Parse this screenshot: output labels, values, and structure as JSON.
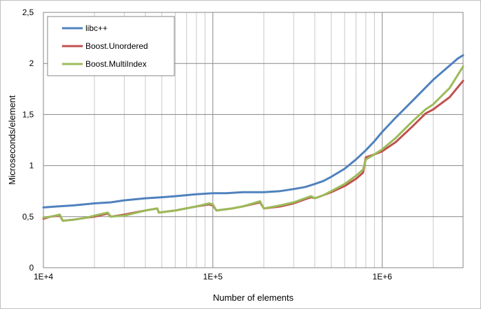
{
  "chart_data": {
    "type": "line",
    "title": "",
    "xlabel": "Number of elements",
    "ylabel": "Microseconds/element",
    "x_scale": "log",
    "xlim": [
      10000,
      3000000
    ],
    "ylim": [
      0,
      2.5
    ],
    "x_tick_labels": [
      "1E+4",
      "1E+5",
      "1E+6"
    ],
    "x_tick_values": [
      10000,
      100000,
      1000000
    ],
    "y_tick_labels": [
      "0",
      "0,5",
      "1",
      "1,5",
      "2",
      "2,5"
    ],
    "y_tick_values": [
      0,
      0.5,
      1,
      1.5,
      2,
      2.5
    ],
    "grid": true,
    "legend_position": "top-left",
    "series": [
      {
        "name": "libc++",
        "color": "#4f81bd",
        "points": [
          [
            10000,
            0.59
          ],
          [
            12000,
            0.6
          ],
          [
            15000,
            0.61
          ],
          [
            20000,
            0.63
          ],
          [
            25000,
            0.64
          ],
          [
            30000,
            0.66
          ],
          [
            40000,
            0.68
          ],
          [
            50000,
            0.69
          ],
          [
            60000,
            0.7
          ],
          [
            80000,
            0.72
          ],
          [
            100000,
            0.73
          ],
          [
            120000,
            0.73
          ],
          [
            150000,
            0.74
          ],
          [
            200000,
            0.74
          ],
          [
            250000,
            0.75
          ],
          [
            300000,
            0.77
          ],
          [
            350000,
            0.79
          ],
          [
            400000,
            0.82
          ],
          [
            450000,
            0.85
          ],
          [
            500000,
            0.89
          ],
          [
            600000,
            0.97
          ],
          [
            700000,
            1.06
          ],
          [
            800000,
            1.15
          ],
          [
            900000,
            1.24
          ],
          [
            1000000,
            1.33
          ],
          [
            1200000,
            1.47
          ],
          [
            1500000,
            1.63
          ],
          [
            2000000,
            1.84
          ],
          [
            2500000,
            1.98
          ],
          [
            2800000,
            2.05
          ],
          [
            3000000,
            2.08
          ]
        ]
      },
      {
        "name": "Boost.Unordered",
        "color": "#c0504d",
        "points": [
          [
            10000,
            0.48
          ],
          [
            11000,
            0.5
          ],
          [
            12500,
            0.51
          ],
          [
            13000,
            0.46
          ],
          [
            15000,
            0.47
          ],
          [
            18000,
            0.49
          ],
          [
            20000,
            0.5
          ],
          [
            24000,
            0.53
          ],
          [
            25000,
            0.5
          ],
          [
            30000,
            0.52
          ],
          [
            40000,
            0.56
          ],
          [
            47000,
            0.58
          ],
          [
            48000,
            0.54
          ],
          [
            60000,
            0.56
          ],
          [
            80000,
            0.6
          ],
          [
            95000,
            0.62
          ],
          [
            100000,
            0.61
          ],
          [
            105000,
            0.56
          ],
          [
            130000,
            0.58
          ],
          [
            150000,
            0.6
          ],
          [
            190000,
            0.64
          ],
          [
            200000,
            0.58
          ],
          [
            250000,
            0.6
          ],
          [
            300000,
            0.63
          ],
          [
            350000,
            0.67
          ],
          [
            380000,
            0.69
          ],
          [
            400000,
            0.68
          ],
          [
            450000,
            0.71
          ],
          [
            500000,
            0.74
          ],
          [
            600000,
            0.8
          ],
          [
            700000,
            0.87
          ],
          [
            770000,
            0.93
          ],
          [
            800000,
            1.08
          ],
          [
            900000,
            1.11
          ],
          [
            1000000,
            1.14
          ],
          [
            1200000,
            1.23
          ],
          [
            1500000,
            1.38
          ],
          [
            1800000,
            1.51
          ],
          [
            2000000,
            1.55
          ],
          [
            2500000,
            1.67
          ],
          [
            3000000,
            1.83
          ]
        ]
      },
      {
        "name": "Boost.MultiIndex",
        "color": "#9bbb59",
        "points": [
          [
            10000,
            0.49
          ],
          [
            11000,
            0.5
          ],
          [
            12500,
            0.52
          ],
          [
            13000,
            0.46
          ],
          [
            15000,
            0.47
          ],
          [
            18000,
            0.49
          ],
          [
            20000,
            0.51
          ],
          [
            24000,
            0.54
          ],
          [
            25000,
            0.5
          ],
          [
            30000,
            0.51
          ],
          [
            40000,
            0.56
          ],
          [
            47000,
            0.58
          ],
          [
            48000,
            0.54
          ],
          [
            60000,
            0.56
          ],
          [
            80000,
            0.6
          ],
          [
            95000,
            0.63
          ],
          [
            100000,
            0.62
          ],
          [
            105000,
            0.56
          ],
          [
            130000,
            0.58
          ],
          [
            150000,
            0.6
          ],
          [
            190000,
            0.65
          ],
          [
            200000,
            0.58
          ],
          [
            250000,
            0.61
          ],
          [
            300000,
            0.64
          ],
          [
            350000,
            0.68
          ],
          [
            380000,
            0.7
          ],
          [
            400000,
            0.68
          ],
          [
            450000,
            0.71
          ],
          [
            500000,
            0.75
          ],
          [
            600000,
            0.82
          ],
          [
            700000,
            0.9
          ],
          [
            770000,
            0.96
          ],
          [
            800000,
            1.06
          ],
          [
            900000,
            1.11
          ],
          [
            1000000,
            1.16
          ],
          [
            1200000,
            1.27
          ],
          [
            1500000,
            1.43
          ],
          [
            1800000,
            1.55
          ],
          [
            2000000,
            1.6
          ],
          [
            2500000,
            1.76
          ],
          [
            3000000,
            1.97
          ]
        ]
      }
    ]
  }
}
